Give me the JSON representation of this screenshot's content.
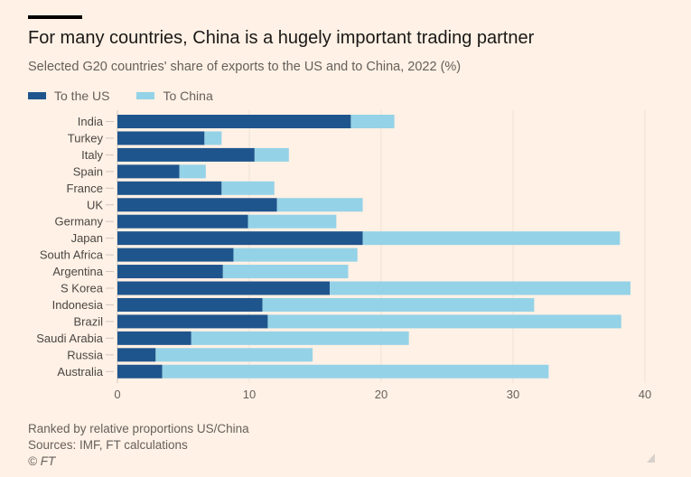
{
  "header": {
    "title": "For many countries, China is a hugely important trading partner",
    "subtitle": "Selected G20 countries' share of exports to the US and to China, 2022 (%)"
  },
  "legend": [
    {
      "label": "To the US",
      "color": "#1F558D"
    },
    {
      "label": "To China",
      "color": "#94D2E7"
    }
  ],
  "footer": {
    "note": "Ranked by relative proportions US/China",
    "source": "Sources: IMF, FT calculations",
    "copyright": "© FT"
  },
  "chart_data": {
    "type": "bar",
    "orientation": "horizontal",
    "stacked": true,
    "title": "For many countries, China is a hugely important trading partner",
    "subtitle": "Selected G20 countries' share of exports to the US and to China, 2022 (%)",
    "categories": [
      "India",
      "Turkey",
      "Italy",
      "Spain",
      "France",
      "UK",
      "Germany",
      "Japan",
      "South Africa",
      "Argentina",
      "S Korea",
      "Indonesia",
      "Brazil",
      "Saudi Arabia",
      "Russia",
      "Australia"
    ],
    "series": [
      {
        "name": "To the US",
        "color": "#1F558D",
        "values": [
          17.7,
          6.6,
          10.4,
          4.7,
          7.9,
          12.1,
          9.9,
          18.6,
          8.8,
          8.0,
          16.1,
          11.0,
          11.4,
          5.6,
          2.9,
          3.4
        ]
      },
      {
        "name": "To China",
        "color": "#94D2E7",
        "values": [
          3.3,
          1.3,
          2.6,
          2.0,
          4.0,
          6.5,
          6.7,
          19.5,
          9.4,
          9.5,
          22.8,
          20.6,
          26.8,
          16.5,
          11.9,
          29.3
        ]
      }
    ],
    "xlim": [
      0,
      42
    ],
    "xticks": [
      0,
      10,
      20,
      30,
      40
    ],
    "xlabel": "",
    "ylabel": "",
    "grid": true,
    "legend_position": "top-left"
  }
}
